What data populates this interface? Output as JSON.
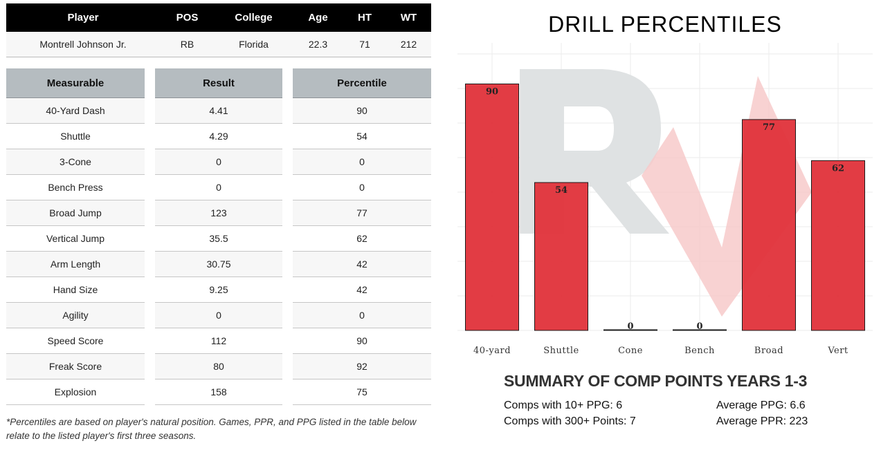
{
  "player_table": {
    "headers": [
      "Player",
      "POS",
      "College",
      "Age",
      "HT",
      "WT"
    ],
    "row": [
      "Montrell Johnson Jr.",
      "RB",
      "Florida",
      "22.3",
      "71",
      "212"
    ]
  },
  "measurables": {
    "headers": {
      "measurable": "Measurable",
      "result": "Result",
      "percentile": "Percentile"
    },
    "rows": [
      {
        "name": "40-Yard Dash",
        "result": "4.41",
        "percentile": "90"
      },
      {
        "name": "Shuttle",
        "result": "4.29",
        "percentile": "54"
      },
      {
        "name": "3-Cone",
        "result": "0",
        "percentile": "0"
      },
      {
        "name": "Bench Press",
        "result": "0",
        "percentile": "0"
      },
      {
        "name": "Broad Jump",
        "result": "123",
        "percentile": "77"
      },
      {
        "name": "Vertical Jump",
        "result": "35.5",
        "percentile": "62"
      },
      {
        "name": "Arm Length",
        "result": "30.75",
        "percentile": "42"
      },
      {
        "name": "Hand Size",
        "result": "9.25",
        "percentile": "42"
      },
      {
        "name": "Agility",
        "result": "0",
        "percentile": "0"
      },
      {
        "name": "Speed Score",
        "result": "112",
        "percentile": "90"
      },
      {
        "name": "Freak Score",
        "result": "80",
        "percentile": "92"
      },
      {
        "name": "Explosion",
        "result": "158",
        "percentile": "75"
      }
    ]
  },
  "footnote": "*Percentiles are based on player's natural position. Games, PPR, and PPG listed in the table below relate to the listed player's first three seasons.",
  "chart_data": {
    "type": "bar",
    "title": "DRILL PERCENTILES",
    "categories": [
      "40-yard",
      "Shuttle",
      "Cone",
      "Bench",
      "Broad",
      "Vert"
    ],
    "values": [
      90,
      54,
      0,
      0,
      77,
      62
    ],
    "ylim": [
      0,
      105
    ],
    "grid": true,
    "bar_color": "#e0313a",
    "watermark_gray": "#dfe2e3",
    "watermark_red": "#f7caca"
  },
  "summary": {
    "title": "SUMMARY OF COMP POINTS YEARS 1-3",
    "comps_10_ppg": "Comps with 10+ PPG: 6",
    "comps_300_points": "Comps with 300+ Points: 7",
    "average_ppg": "Average PPG: 6.6",
    "average_ppr": "Average PPR: 223"
  }
}
